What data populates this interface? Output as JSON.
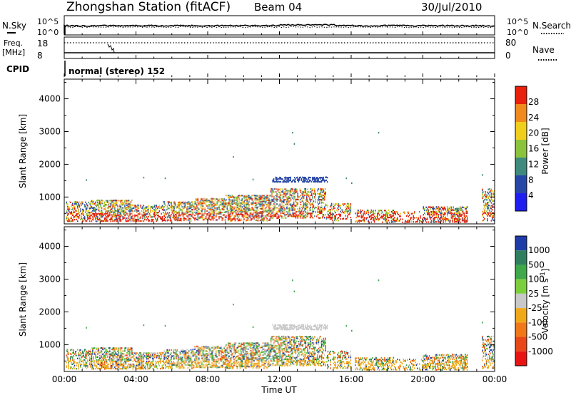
{
  "header": {
    "title": "Zhongshan Station (fitACF)",
    "beam": "Beam 04",
    "date": "30/Jul/2010"
  },
  "noise_panel": {
    "left_label": "N.Sky",
    "right_label": "N.Search",
    "ticks_left": [
      "10^5",
      "10^0"
    ],
    "ticks_right": [
      "10^5",
      "10^0"
    ]
  },
  "freq_panel": {
    "left_label_1": "Freq.",
    "left_label_2": "[MHz]",
    "right_label": "Nave",
    "ticks_left": [
      "18",
      "8"
    ],
    "ticks_right": [
      "80",
      "0"
    ]
  },
  "cpid_panel": {
    "label": "CPID",
    "mode_text": "normal (stereo) 152"
  },
  "chart_data": [
    {
      "type": "heatmap",
      "title": "",
      "ylabel": "Slant Range [km]",
      "xlabel": "",
      "x_range_hours": [
        0,
        24
      ],
      "ylim": [
        180,
        4600
      ],
      "y_ticks": [
        "1000",
        "2000",
        "3000",
        "4000"
      ],
      "colorbar_label": "Power [dB]",
      "colorbar_ticks": [
        "4",
        "8",
        "12",
        "16",
        "20",
        "24",
        "28"
      ],
      "colorbar_range": [
        0,
        32
      ],
      "colors": [
        "#1e1ef0",
        "#2747a8",
        "#3f8a7e",
        "#8bc43c",
        "#f0cf1c",
        "#f08a1c",
        "#e8200c"
      ]
    },
    {
      "type": "heatmap",
      "title": "",
      "ylabel": "Slant Range [km]",
      "xlabel": "Time UT",
      "x_range_hours": [
        0,
        24
      ],
      "ylim": [
        180,
        4600
      ],
      "y_ticks": [
        "1000",
        "2000",
        "3000",
        "4000"
      ],
      "x_ticks": [
        "00:00",
        "04:00",
        "08:00",
        "12:00",
        "16:00",
        "20:00",
        "00:00"
      ],
      "colorbar_label": "Velocity [m s^-1]",
      "colorbar_ticks": [
        "1000",
        "500",
        "100",
        "25",
        "-25",
        "-100",
        "-500",
        "-1000"
      ],
      "colors": [
        "#1e3ca8",
        "#2f7f5e",
        "#3fa84a",
        "#7ccf3c",
        "#c8c8c8",
        "#f0a818",
        "#f07818",
        "#e84818",
        "#e81414"
      ]
    }
  ]
}
